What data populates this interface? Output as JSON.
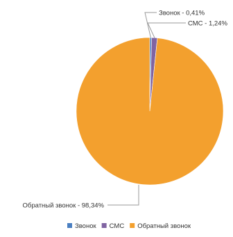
{
  "chart_data": {
    "type": "pie",
    "title": "",
    "slices": [
      {
        "label": "Звонок",
        "value": 0.41,
        "callout": "Звонок - 0,41%",
        "color": "#4a7fc1"
      },
      {
        "label": "СМС",
        "value": 1.24,
        "callout": "СМС - 1,24%",
        "color": "#8064a2"
      },
      {
        "label": "Обратный звонок",
        "value": 98.34,
        "callout": "Обратный звонок - 98,34%",
        "color": "#f3a02e"
      }
    ],
    "legend": {
      "position": "bottom-right",
      "items": [
        "Звонок",
        "СМС",
        "Обратный звонок"
      ]
    },
    "start_angle_deg": 0,
    "direction": "clockwise"
  },
  "label_line_color": "#9a9a9a",
  "text_color": "#333333"
}
